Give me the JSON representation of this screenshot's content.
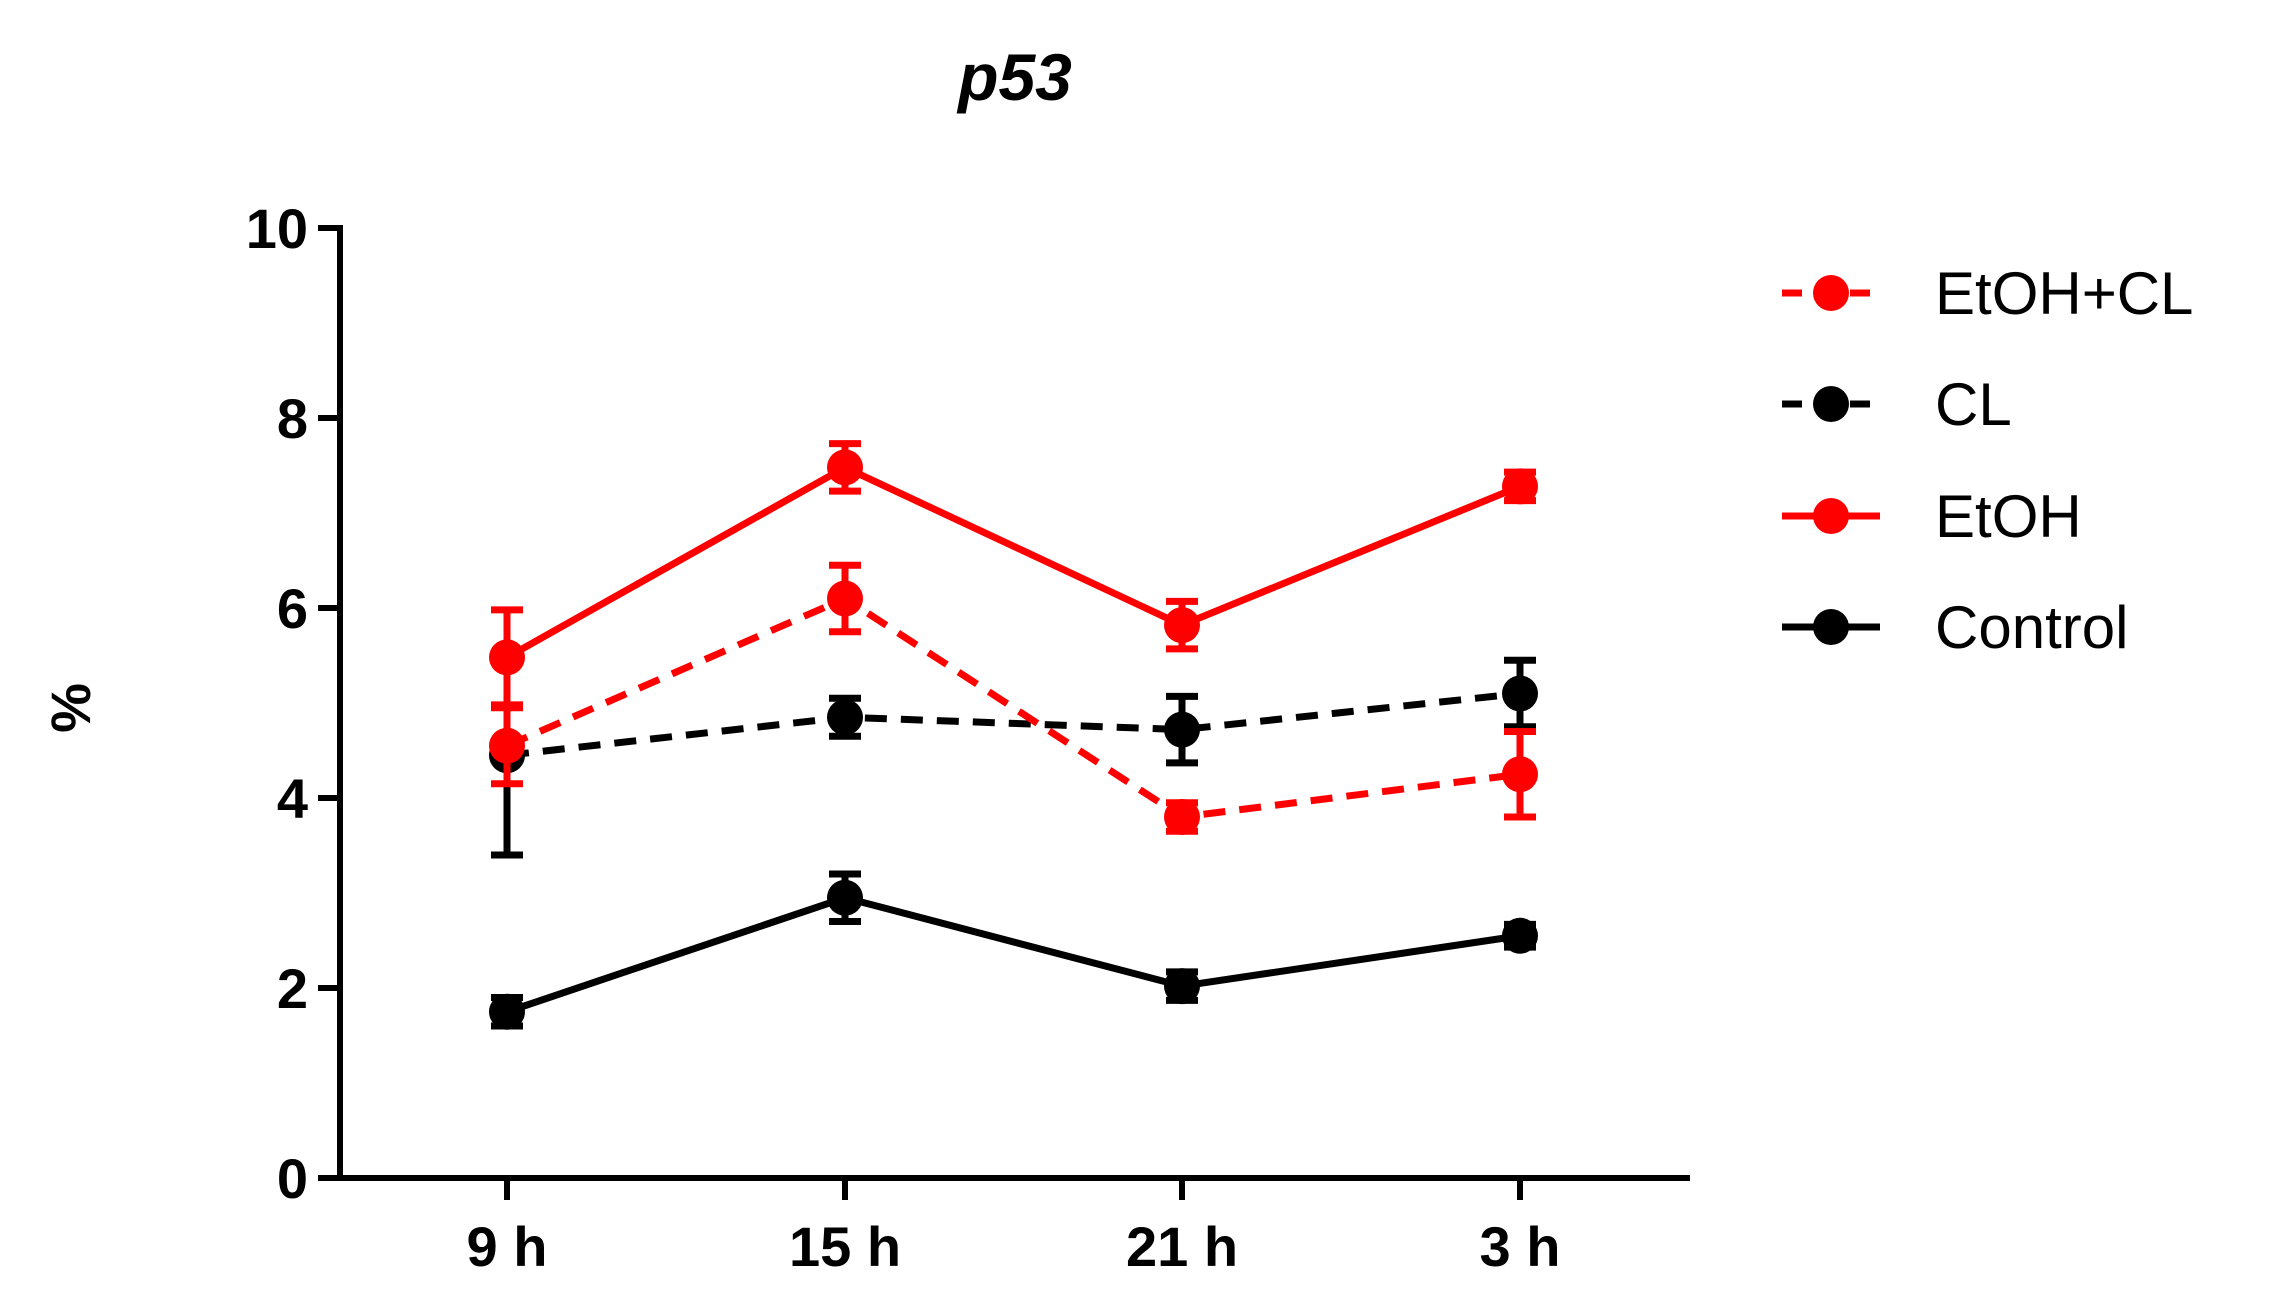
{
  "chart_data": {
    "type": "line",
    "title": "p53",
    "xlabel": "",
    "ylabel": "%",
    "ylim": [
      0,
      10
    ],
    "yticks": [
      "0",
      "2",
      "4",
      "6",
      "8",
      "10"
    ],
    "categories": [
      "9 h",
      "15 h",
      "21 h",
      "3 h"
    ],
    "legend_position": "right",
    "series": [
      {
        "name": "EtOH+CL",
        "color": "#ff0000",
        "dashed": true,
        "values": [
          4.55,
          6.1,
          3.8,
          4.25
        ],
        "errors": [
          0.4,
          0.35,
          0.15,
          0.45
        ]
      },
      {
        "name": "CL",
        "color": "#000000",
        "dashed": true,
        "values": [
          4.45,
          4.85,
          4.72,
          5.1
        ],
        "errors": [
          1.05,
          0.2,
          0.35,
          0.35
        ]
      },
      {
        "name": "EtOH",
        "color": "#ff0000",
        "dashed": false,
        "values": [
          5.48,
          7.48,
          5.82,
          7.28
        ],
        "errors": [
          0.5,
          0.25,
          0.25,
          0.15
        ]
      },
      {
        "name": "Control",
        "color": "#000000",
        "dashed": false,
        "values": [
          1.75,
          2.95,
          2.02,
          2.55
        ],
        "errors": [
          0.15,
          0.25,
          0.15,
          0.12
        ]
      }
    ]
  }
}
